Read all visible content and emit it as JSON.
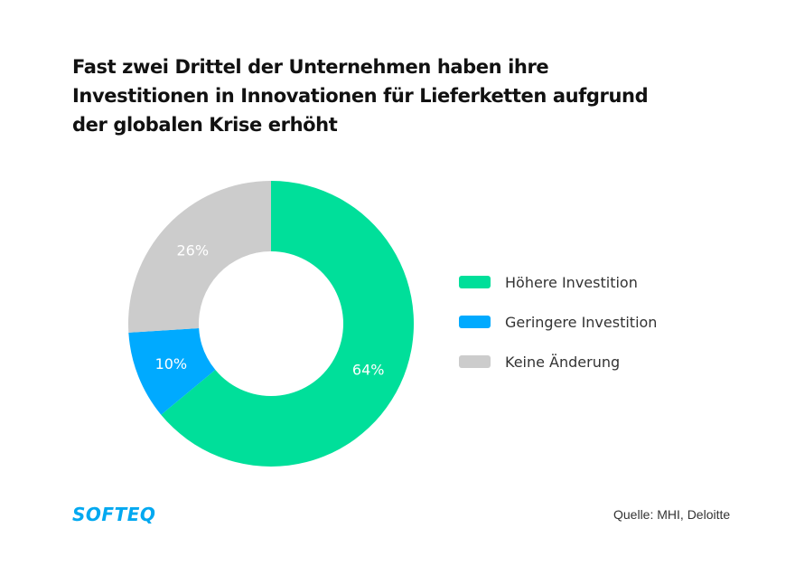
{
  "chart_data": {
    "type": "pie",
    "variant": "donut",
    "title": "Fast zwei Drittel der Unternehmen haben ihre Investitionen in Innovationen für Lieferketten aufgrund der globalen Krise erhöht",
    "title_lines": [
      "Fast zwei Drittel der Unternehmen haben ihre",
      "Investitionen in Innovationen für Lieferketten aufgrund",
      "der globalen Krise erhöht"
    ],
    "categories": [
      "Höhere Investition",
      "Geringere Investition",
      "Keine Änderung"
    ],
    "values": [
      64,
      10,
      26
    ],
    "unit": "%",
    "data_labels": [
      "64%",
      "10%",
      "26%"
    ],
    "colors": [
      "#00df9a",
      "#00aaff",
      "#cccccc"
    ],
    "start_angle": "12 o'clock",
    "direction": "clockwise",
    "legend_position": "right"
  },
  "legend": [
    {
      "label": "Höhere Investition",
      "color": "#00df9a"
    },
    {
      "label": "Geringere Investition",
      "color": "#00aaff"
    },
    {
      "label": "Keine Änderung",
      "color": "#cccccc"
    }
  ],
  "footer": {
    "logo": "SOFTEQ",
    "source": "Quelle: MHI, Deloitte"
  }
}
